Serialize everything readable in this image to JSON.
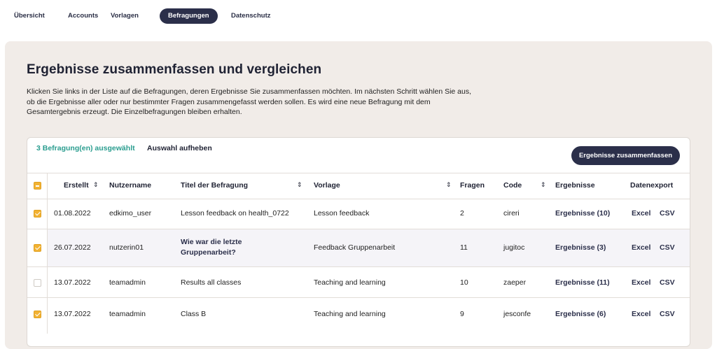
{
  "nav": {
    "items": [
      {
        "label": "Übersicht",
        "active": false
      },
      {
        "label": "Accounts",
        "active": false
      },
      {
        "label": "Vorlagen",
        "active": false
      },
      {
        "label": "Befragungen",
        "active": true
      },
      {
        "label": "Datenschutz",
        "active": false
      }
    ]
  },
  "main": {
    "title": "Ergebnisse zusammenfassen und vergleichen",
    "description": "Klicken Sie links in der Liste auf die Befragungen, deren Ergebnisse Sie zusammenfassen möchten. Im nächsten Schritt wählen Sie aus, ob die Ergebnisse aller oder nur bestimmter Fragen zusammengefasst werden sollen. Es wird eine neue Befragung mit dem Gesamtergebnis erzeugt. Die Einzelbefragungen bleiben erhalten."
  },
  "toolbar": {
    "selection_count": "3 Befragung(en) ausgewählt",
    "deselect_label": "Auswahl aufheben",
    "summarize_label": "Ergebnisse zusammenfassen"
  },
  "table": {
    "header_checkbox": "partial",
    "columns": [
      "Erstellt",
      "Nutzername",
      "Titel der Befragung",
      "Vorlage",
      "Fragen",
      "Code",
      "Ergebnisse",
      "Datenexport"
    ],
    "rows": [
      {
        "checked": true,
        "created": "01.08.2022",
        "user": "edkimo_user",
        "title": "Lesson feedback on health_0722",
        "title_bold": false,
        "template": "Lesson feedback",
        "questions": "2",
        "code": "cireri",
        "results": "Ergebnisse (10)",
        "excel": "Excel",
        "csv": "CSV"
      },
      {
        "checked": true,
        "created": "26.07.2022",
        "user": "nutzerin01",
        "title": "Wie war die letzte",
        "title_line2": "Gruppenarbeit?",
        "title_bold": true,
        "template": "Feedback Gruppenarbeit",
        "questions": "11",
        "code": "jugitoc",
        "results": "Ergebnisse (3)",
        "excel": "Excel",
        "csv": "CSV"
      },
      {
        "checked": false,
        "created": "13.07.2022",
        "user": "teamadmin",
        "title": "Results all classes",
        "title_bold": false,
        "template": "Teaching and learning",
        "questions": "10",
        "code": "zaeper",
        "results": "Ergebnisse (11)",
        "excel": "Excel",
        "csv": "CSV"
      },
      {
        "checked": true,
        "created": "13.07.2022",
        "user": "teamadmin",
        "title": "Class B",
        "title_bold": false,
        "template": "Teaching and learning",
        "questions": "9",
        "code": "jesconfe",
        "results": "Ergebnisse (6)",
        "excel": "Excel",
        "csv": "CSV"
      }
    ]
  },
  "colors": {
    "primary": "#2b2f4a",
    "accent_teal": "#2a9d8f",
    "checkbox": "#f2b233",
    "panel_bg": "#f1ece8"
  }
}
